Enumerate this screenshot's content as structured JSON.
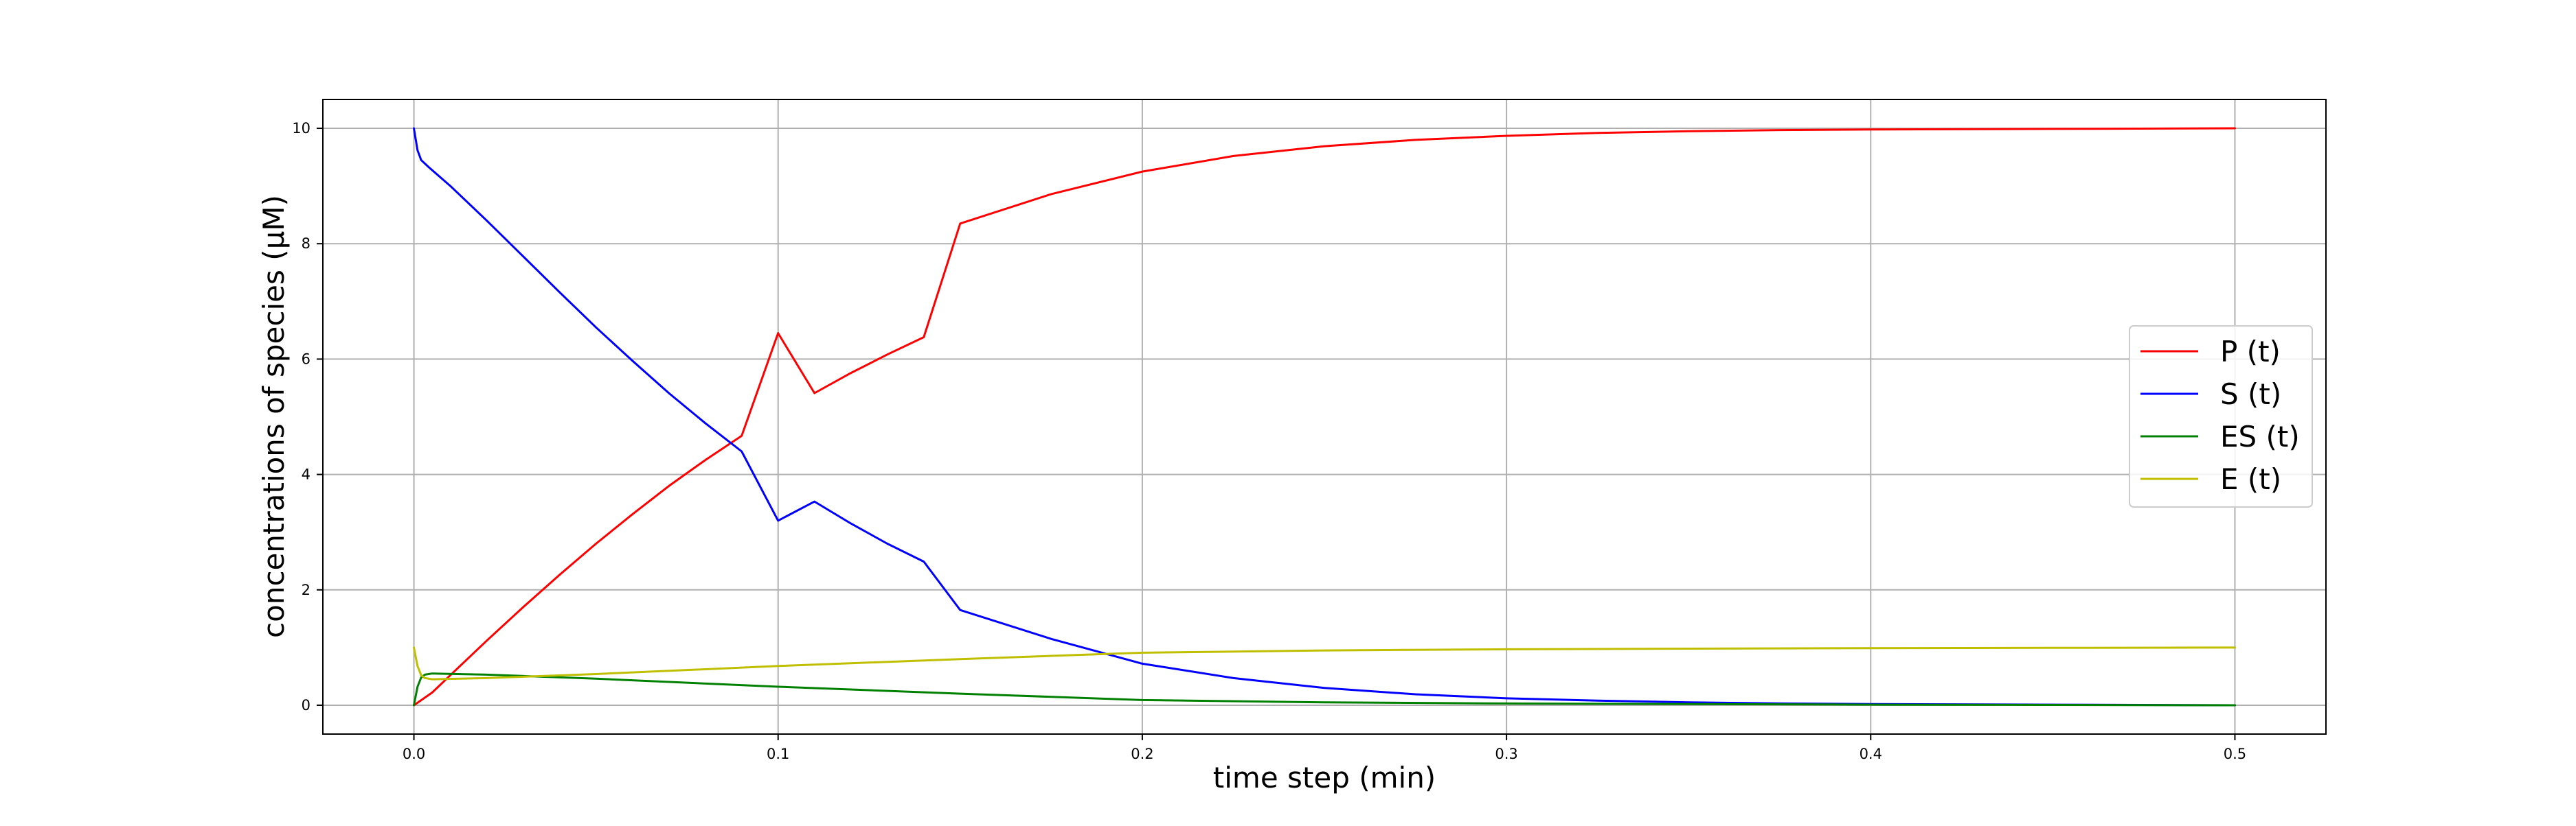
{
  "chart_data": {
    "type": "line",
    "title": "",
    "xlabel": "time step (min)",
    "ylabel": "concentrations of species (μM)",
    "xlim": [
      -0.025,
      0.525
    ],
    "ylim": [
      -0.5,
      10.5
    ],
    "xticks": [
      "0.0",
      "0.1",
      "0.2",
      "0.3",
      "0.4",
      "0.5"
    ],
    "yticks": [
      "0",
      "2",
      "4",
      "6",
      "8",
      "10"
    ],
    "grid": true,
    "legend_position": "center-right",
    "series": [
      {
        "name": "P (t)",
        "color": "#ff0000",
        "points": [
          [
            0.0,
            0.0
          ],
          [
            0.005,
            0.22
          ],
          [
            0.01,
            0.52
          ],
          [
            0.02,
            1.12
          ],
          [
            0.03,
            1.7
          ],
          [
            0.04,
            2.26
          ],
          [
            0.05,
            2.8
          ],
          [
            0.06,
            3.31
          ],
          [
            0.07,
            3.8
          ],
          [
            0.08,
            4.25
          ],
          [
            0.09,
            4.67
          ],
          [
            0.1,
            6.45
          ],
          [
            0.11,
            5.41
          ],
          [
            0.12,
            5.76
          ],
          [
            0.13,
            6.08
          ],
          [
            0.14,
            6.38
          ],
          [
            0.15,
            8.35
          ],
          [
            0.175,
            8.86
          ],
          [
            0.2,
            9.25
          ],
          [
            0.225,
            9.52
          ],
          [
            0.25,
            9.69
          ],
          [
            0.275,
            9.8
          ],
          [
            0.3,
            9.87
          ],
          [
            0.325,
            9.92
          ],
          [
            0.35,
            9.95
          ],
          [
            0.375,
            9.97
          ],
          [
            0.4,
            9.98
          ],
          [
            0.45,
            9.99
          ],
          [
            0.5,
            10.0
          ]
        ]
      },
      {
        "name": "S (t)",
        "color": "#0000ff",
        "points": [
          [
            0.0,
            10.0
          ],
          [
            0.001,
            9.62
          ],
          [
            0.002,
            9.45
          ],
          [
            0.004,
            9.33
          ],
          [
            0.01,
            9.0
          ],
          [
            0.02,
            8.4
          ],
          [
            0.03,
            7.78
          ],
          [
            0.04,
            7.16
          ],
          [
            0.05,
            6.55
          ],
          [
            0.06,
            5.97
          ],
          [
            0.07,
            5.41
          ],
          [
            0.08,
            4.89
          ],
          [
            0.09,
            4.4
          ],
          [
            0.1,
            3.2
          ],
          [
            0.11,
            3.53
          ],
          [
            0.12,
            3.15
          ],
          [
            0.13,
            2.8
          ],
          [
            0.14,
            2.49
          ],
          [
            0.15,
            1.65
          ],
          [
            0.175,
            1.15
          ],
          [
            0.2,
            0.72
          ],
          [
            0.225,
            0.47
          ],
          [
            0.25,
            0.3
          ],
          [
            0.275,
            0.19
          ],
          [
            0.3,
            0.12
          ],
          [
            0.325,
            0.08
          ],
          [
            0.35,
            0.05
          ],
          [
            0.375,
            0.03
          ],
          [
            0.4,
            0.02
          ],
          [
            0.45,
            0.01
          ],
          [
            0.5,
            0.0
          ]
        ]
      },
      {
        "name": "ES (t)",
        "color": "#008000",
        "points": [
          [
            0.0,
            0.0
          ],
          [
            0.001,
            0.32
          ],
          [
            0.002,
            0.48
          ],
          [
            0.003,
            0.53
          ],
          [
            0.005,
            0.55
          ],
          [
            0.02,
            0.53
          ],
          [
            0.05,
            0.46
          ],
          [
            0.1,
            0.32
          ],
          [
            0.15,
            0.2
          ],
          [
            0.2,
            0.09
          ],
          [
            0.25,
            0.05
          ],
          [
            0.3,
            0.03
          ],
          [
            0.35,
            0.02
          ],
          [
            0.4,
            0.01
          ],
          [
            0.45,
            0.005
          ],
          [
            0.5,
            0.0
          ]
        ]
      },
      {
        "name": "E (t)",
        "color": "#bfbf00",
        "points": [
          [
            0.0,
            1.0
          ],
          [
            0.001,
            0.68
          ],
          [
            0.002,
            0.52
          ],
          [
            0.003,
            0.47
          ],
          [
            0.005,
            0.45
          ],
          [
            0.02,
            0.47
          ],
          [
            0.05,
            0.54
          ],
          [
            0.1,
            0.68
          ],
          [
            0.15,
            0.8
          ],
          [
            0.2,
            0.91
          ],
          [
            0.25,
            0.95
          ],
          [
            0.3,
            0.97
          ],
          [
            0.35,
            0.98
          ],
          [
            0.4,
            0.99
          ],
          [
            0.45,
            0.995
          ],
          [
            0.5,
            1.0
          ]
        ]
      }
    ]
  }
}
